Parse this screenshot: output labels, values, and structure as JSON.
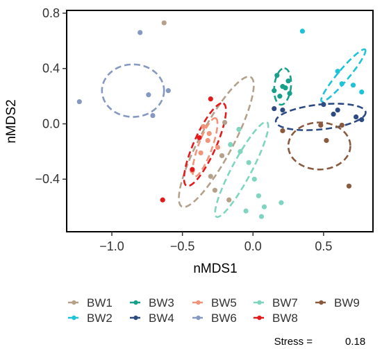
{
  "chart_data": {
    "type": "scatter",
    "xlabel": "nMDS1",
    "ylabel": "nMDS2",
    "xlim": [
      -1.32,
      0.85
    ],
    "ylim": [
      -0.78,
      0.82
    ],
    "x_ticks": [
      -1.0,
      -0.5,
      0.0,
      0.5
    ],
    "x_tick_labels": [
      "−1.0",
      "−0.5",
      "0.0",
      "0.5"
    ],
    "y_ticks": [
      0.8,
      0.4,
      0.0,
      -0.4
    ],
    "y_tick_labels": [
      "0.8",
      "0.4",
      "0.0",
      "−0.4"
    ],
    "grid": false,
    "legend_position": "bottom",
    "ellipse_style": "dashed",
    "stress_label": "Stress =",
    "stress_value": "0.18",
    "series": [
      {
        "name": "BW1",
        "color": "#b5a08a",
        "points": [
          [
            -0.63,
            0.73
          ],
          [
            -0.2,
            0.01
          ],
          [
            -0.3,
            -0.38
          ],
          [
            -0.17,
            -0.55
          ],
          [
            -0.27,
            -0.48
          ],
          [
            -0.22,
            -0.23
          ]
        ],
        "ellipse": {
          "cx": -0.26,
          "cy": -0.13,
          "rx": 0.52,
          "ry": 0.12,
          "angle": -62
        }
      },
      {
        "name": "BW2",
        "color": "#1fc3d8",
        "points": [
          [
            0.35,
            0.67
          ],
          [
            0.77,
            0.23
          ],
          [
            0.71,
            0.28
          ],
          [
            0.63,
            0.29
          ],
          [
            0.6,
            0.38
          ]
        ],
        "ellipse": {
          "cx": 0.64,
          "cy": 0.35,
          "rx": 0.24,
          "ry": 0.04,
          "angle": -50
        }
      },
      {
        "name": "BW3",
        "color": "#18a08a",
        "points": [
          [
            0.17,
            0.35
          ],
          [
            0.15,
            0.24
          ],
          [
            0.23,
            0.26
          ],
          [
            0.26,
            0.22
          ],
          [
            0.25,
            0.31
          ],
          [
            0.19,
            0.2
          ],
          [
            0.21,
            0.27
          ]
        ],
        "ellipse": {
          "cx": 0.21,
          "cy": 0.27,
          "rx": 0.13,
          "ry": 0.06,
          "angle": -84
        }
      },
      {
        "name": "BW4",
        "color": "#2e4a82",
        "points": [
          [
            0.15,
            0.11
          ],
          [
            0.21,
            0.1
          ],
          [
            0.5,
            0.14
          ],
          [
            0.6,
            0.1
          ],
          [
            0.73,
            0.05
          ],
          [
            0.77,
            0.03
          ],
          [
            0.57,
            0.07
          ]
        ],
        "ellipse": {
          "cx": 0.48,
          "cy": 0.05,
          "rx": 0.32,
          "ry": 0.09,
          "angle": -6
        }
      },
      {
        "name": "BW5",
        "color": "#f0957a",
        "points": [
          [
            -0.35,
            -0.02
          ],
          [
            -0.32,
            -0.12
          ],
          [
            -0.37,
            -0.21
          ],
          [
            -0.25,
            -0.17
          ],
          [
            -0.43,
            -0.34
          ],
          [
            -0.31,
            -0.07
          ]
        ],
        "ellipse": {
          "cx": -0.34,
          "cy": -0.17,
          "rx": 0.22,
          "ry": 0.05,
          "angle": -70
        }
      },
      {
        "name": "BW6",
        "color": "#8699c0",
        "points": [
          [
            -1.23,
            0.16
          ],
          [
            -0.8,
            0.66
          ],
          [
            -0.74,
            0.21
          ],
          [
            -0.6,
            0.24
          ],
          [
            -0.71,
            0.06
          ]
        ],
        "ellipse": {
          "cx": -0.85,
          "cy": 0.24,
          "rx": 0.22,
          "ry": 0.19,
          "angle": 0
        }
      },
      {
        "name": "BW7",
        "color": "#7fd5c0",
        "points": [
          [
            -0.1,
            -0.04
          ],
          [
            -0.16,
            -0.15
          ],
          [
            -0.09,
            -0.2
          ],
          [
            -0.03,
            -0.28
          ],
          [
            0.01,
            -0.4
          ],
          [
            0.04,
            -0.52
          ],
          [
            0.08,
            -0.6
          ],
          [
            0.2,
            -0.57
          ],
          [
            0.06,
            -0.67
          ],
          [
            -0.05,
            -0.63
          ]
        ],
        "ellipse": {
          "cx": -0.08,
          "cy": -0.33,
          "rx": 0.38,
          "ry": 0.07,
          "angle": -62
        }
      },
      {
        "name": "BW8",
        "color": "#e31a1c",
        "points": [
          [
            -0.64,
            -0.55
          ],
          [
            -0.3,
            0.18
          ],
          [
            -0.43,
            -0.33
          ],
          [
            -0.38,
            -0.1
          ]
        ],
        "ellipse": {
          "cx": -0.34,
          "cy": -0.15,
          "rx": 0.32,
          "ry": 0.08,
          "angle": -66
        }
      },
      {
        "name": "BW9",
        "color": "#8a5a3e",
        "points": [
          [
            0.21,
            -0.05
          ],
          [
            0.48,
            -0.01
          ],
          [
            0.63,
            -0.01
          ],
          [
            0.52,
            -0.12
          ],
          [
            0.68,
            -0.45
          ]
        ],
        "ellipse": {
          "cx": 0.47,
          "cy": -0.16,
          "rx": 0.22,
          "ry": 0.17,
          "angle": 0
        }
      }
    ]
  }
}
